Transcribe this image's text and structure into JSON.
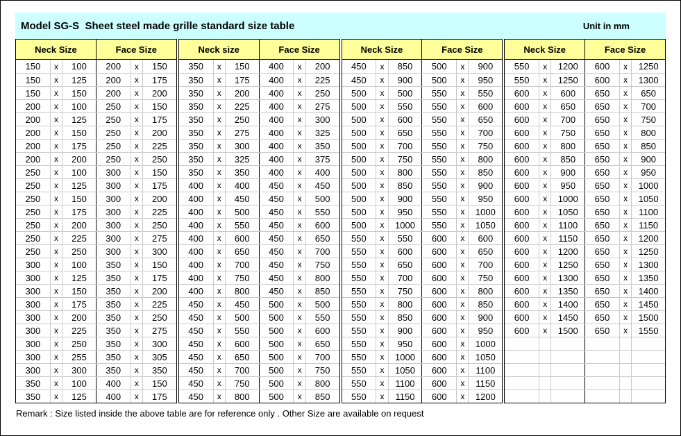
{
  "title": "Model SG-S  Sheet steel made grille standard size table",
  "unit_label": "Unit in mm",
  "x_separator": "x",
  "remark": "Remark : Size listed inside the above table are for reference only . Other Size are available on request",
  "colors": {
    "title_bg": "#CCFFFF",
    "header_bg": "#FFFF99",
    "grid_line": "#C9C9C9",
    "border": "#000000"
  },
  "columns": [
    {
      "neck_label": "Neck Size",
      "face_label": "Face Size",
      "rows": [
        [
          "150",
          "100",
          "200",
          "150"
        ],
        [
          "150",
          "125",
          "200",
          "175"
        ],
        [
          "150",
          "150",
          "200",
          "200"
        ],
        [
          "200",
          "100",
          "250",
          "150"
        ],
        [
          "200",
          "125",
          "250",
          "175"
        ],
        [
          "200",
          "150",
          "250",
          "200"
        ],
        [
          "200",
          "175",
          "250",
          "225"
        ],
        [
          "200",
          "200",
          "250",
          "250"
        ],
        [
          "250",
          "100",
          "300",
          "150"
        ],
        [
          "250",
          "125",
          "300",
          "175"
        ],
        [
          "250",
          "150",
          "300",
          "200"
        ],
        [
          "250",
          "175",
          "300",
          "225"
        ],
        [
          "250",
          "200",
          "300",
          "250"
        ],
        [
          "250",
          "225",
          "300",
          "275"
        ],
        [
          "250",
          "250",
          "300",
          "300"
        ],
        [
          "300",
          "100",
          "350",
          "150"
        ],
        [
          "300",
          "125",
          "350",
          "175"
        ],
        [
          "300",
          "150",
          "350",
          "200"
        ],
        [
          "300",
          "175",
          "350",
          "225"
        ],
        [
          "300",
          "200",
          "350",
          "250"
        ],
        [
          "300",
          "225",
          "350",
          "275"
        ],
        [
          "300",
          "250",
          "350",
          "300"
        ],
        [
          "300",
          "255",
          "350",
          "305"
        ],
        [
          "300",
          "300",
          "350",
          "350"
        ],
        [
          "350",
          "100",
          "400",
          "150"
        ],
        [
          "350",
          "125",
          "400",
          "175"
        ]
      ]
    },
    {
      "neck_label": "Neck size",
      "face_label": "Face Size",
      "rows": [
        [
          "350",
          "150",
          "400",
          "200"
        ],
        [
          "350",
          "175",
          "400",
          "225"
        ],
        [
          "350",
          "200",
          "400",
          "250"
        ],
        [
          "350",
          "225",
          "400",
          "275"
        ],
        [
          "350",
          "250",
          "400",
          "300"
        ],
        [
          "350",
          "275",
          "400",
          "325"
        ],
        [
          "350",
          "300",
          "400",
          "350"
        ],
        [
          "350",
          "325",
          "400",
          "375"
        ],
        [
          "350",
          "350",
          "400",
          "400"
        ],
        [
          "400",
          "400",
          "450",
          "450"
        ],
        [
          "400",
          "450",
          "450",
          "500"
        ],
        [
          "400",
          "500",
          "450",
          "550"
        ],
        [
          "400",
          "550",
          "450",
          "600"
        ],
        [
          "400",
          "600",
          "450",
          "650"
        ],
        [
          "400",
          "650",
          "450",
          "700"
        ],
        [
          "400",
          "700",
          "450",
          "750"
        ],
        [
          "400",
          "750",
          "450",
          "800"
        ],
        [
          "400",
          "800",
          "450",
          "850"
        ],
        [
          "450",
          "450",
          "500",
          "500"
        ],
        [
          "450",
          "500",
          "500",
          "550"
        ],
        [
          "450",
          "550",
          "500",
          "600"
        ],
        [
          "450",
          "600",
          "500",
          "650"
        ],
        [
          "450",
          "650",
          "500",
          "700"
        ],
        [
          "450",
          "700",
          "500",
          "750"
        ],
        [
          "450",
          "750",
          "500",
          "800"
        ],
        [
          "450",
          "800",
          "500",
          "850"
        ]
      ]
    },
    {
      "neck_label": "Neck Size",
      "face_label": "Face Size",
      "rows": [
        [
          "450",
          "850",
          "500",
          "900"
        ],
        [
          "450",
          "900",
          "500",
          "950"
        ],
        [
          "500",
          "500",
          "550",
          "550"
        ],
        [
          "500",
          "550",
          "550",
          "600"
        ],
        [
          "500",
          "600",
          "550",
          "650"
        ],
        [
          "500",
          "650",
          "550",
          "700"
        ],
        [
          "500",
          "700",
          "550",
          "750"
        ],
        [
          "500",
          "750",
          "550",
          "800"
        ],
        [
          "500",
          "800",
          "550",
          "850"
        ],
        [
          "500",
          "850",
          "550",
          "900"
        ],
        [
          "500",
          "900",
          "550",
          "950"
        ],
        [
          "500",
          "950",
          "550",
          "1000"
        ],
        [
          "500",
          "1000",
          "550",
          "1050"
        ],
        [
          "550",
          "550",
          "600",
          "600"
        ],
        [
          "550",
          "600",
          "600",
          "650"
        ],
        [
          "550",
          "650",
          "600",
          "700"
        ],
        [
          "550",
          "700",
          "600",
          "750"
        ],
        [
          "550",
          "750",
          "600",
          "800"
        ],
        [
          "550",
          "800",
          "600",
          "850"
        ],
        [
          "550",
          "850",
          "600",
          "900"
        ],
        [
          "550",
          "900",
          "600",
          "950"
        ],
        [
          "550",
          "950",
          "600",
          "1000"
        ],
        [
          "550",
          "1000",
          "600",
          "1050"
        ],
        [
          "550",
          "1050",
          "600",
          "1100"
        ],
        [
          "550",
          "1100",
          "600",
          "1150"
        ],
        [
          "550",
          "1150",
          "600",
          "1200"
        ]
      ]
    },
    {
      "neck_label": "Neck Size",
      "face_label": "Face Size",
      "rows": [
        [
          "550",
          "1200",
          "600",
          "1250"
        ],
        [
          "550",
          "1250",
          "600",
          "1300"
        ],
        [
          "600",
          "600",
          "650",
          "650"
        ],
        [
          "600",
          "650",
          "650",
          "700"
        ],
        [
          "600",
          "700",
          "650",
          "750"
        ],
        [
          "600",
          "750",
          "650",
          "800"
        ],
        [
          "600",
          "800",
          "650",
          "850"
        ],
        [
          "600",
          "850",
          "650",
          "900"
        ],
        [
          "600",
          "900",
          "650",
          "950"
        ],
        [
          "600",
          "950",
          "650",
          "1000"
        ],
        [
          "600",
          "1000",
          "650",
          "1050"
        ],
        [
          "600",
          "1050",
          "650",
          "1100"
        ],
        [
          "600",
          "1100",
          "650",
          "1150"
        ],
        [
          "600",
          "1150",
          "650",
          "1200"
        ],
        [
          "600",
          "1200",
          "650",
          "1250"
        ],
        [
          "600",
          "1250",
          "650",
          "1300"
        ],
        [
          "600",
          "1300",
          "650",
          "1350"
        ],
        [
          "600",
          "1350",
          "650",
          "1400"
        ],
        [
          "600",
          "1400",
          "650",
          "1450"
        ],
        [
          "600",
          "1450",
          "650",
          "1500"
        ],
        [
          "600",
          "1500",
          "650",
          "1550"
        ],
        [
          "",
          "",
          "",
          ""
        ],
        [
          "",
          "",
          "",
          ""
        ],
        [
          "",
          "",
          "",
          ""
        ],
        [
          "",
          "",
          "",
          ""
        ],
        [
          "",
          "",
          "",
          ""
        ]
      ]
    }
  ]
}
